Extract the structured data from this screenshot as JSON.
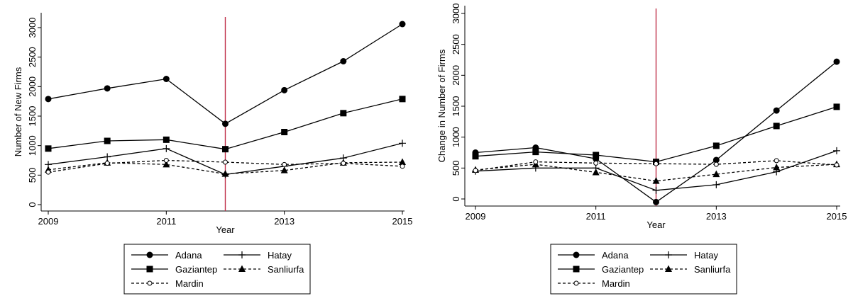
{
  "chart_data": [
    {
      "type": "line",
      "ylabel": "Number of New Firms",
      "xlabel": "Year",
      "x": [
        2009,
        2010,
        2011,
        2012,
        2013,
        2014,
        2015
      ],
      "xticks": [
        "2009",
        "2011",
        "2013",
        "2015"
      ],
      "xlim": [
        2009,
        2015
      ],
      "ylim": [
        0,
        3000
      ],
      "yticks": [
        "0",
        "500",
        "1000",
        "1500",
        "2000",
        "2500",
        "3000"
      ],
      "grid": false,
      "vline": 2012,
      "vline_color": "#c0304a",
      "legend_position": "bottom",
      "series": [
        {
          "name": "Adana",
          "marker": "circle",
          "dash": "solid",
          "values": [
            1790,
            1970,
            2130,
            1370,
            1940,
            2430,
            3060
          ]
        },
        {
          "name": "Hatay",
          "marker": "plus",
          "dash": "solid",
          "values": [
            680,
            810,
            950,
            510,
            650,
            790,
            1040
          ]
        },
        {
          "name": "Gaziantep",
          "marker": "square",
          "dash": "solid",
          "values": [
            950,
            1080,
            1100,
            940,
            1230,
            1550,
            1790
          ]
        },
        {
          "name": "Sanliurfa",
          "marker": "triangle",
          "dash": "dashed",
          "values": [
            590,
            710,
            680,
            520,
            580,
            710,
            720
          ]
        },
        {
          "name": "Mardin",
          "marker": "hollow-circle",
          "dash": "dashed",
          "values": [
            550,
            700,
            750,
            720,
            680,
            700,
            650
          ]
        }
      ]
    },
    {
      "type": "line",
      "ylabel": "Change in Number of Firms",
      "xlabel": "Year",
      "x": [
        2009,
        2010,
        2011,
        2012,
        2013,
        2014,
        2015
      ],
      "xticks": [
        "2009",
        "2011",
        "2013",
        "2015"
      ],
      "xlim": [
        2009,
        2015
      ],
      "ylim": [
        0,
        3000
      ],
      "yticks": [
        "0",
        "500",
        "1000",
        "1500",
        "2000",
        "2500",
        "3000"
      ],
      "grid": false,
      "vline": 2012,
      "vline_color": "#c0304a",
      "legend_position": "bottom",
      "series": [
        {
          "name": "Adana",
          "marker": "circle",
          "dash": "solid",
          "values": [
            750,
            830,
            650,
            -50,
            630,
            1430,
            2220
          ]
        },
        {
          "name": "Hatay",
          "marker": "plus",
          "dash": "solid",
          "values": [
            450,
            500,
            500,
            140,
            230,
            440,
            780
          ]
        },
        {
          "name": "Gaziantep",
          "marker": "square",
          "dash": "solid",
          "values": [
            690,
            760,
            710,
            600,
            860,
            1180,
            1490
          ]
        },
        {
          "name": "Sanliurfa",
          "marker": "triangle",
          "dash": "dashed",
          "values": [
            470,
            560,
            430,
            290,
            400,
            510,
            560
          ]
        },
        {
          "name": "Mardin",
          "marker": "hollow-circle",
          "dash": "dashed",
          "values": [
            460,
            600,
            580,
            570,
            560,
            620,
            550
          ]
        }
      ]
    }
  ]
}
